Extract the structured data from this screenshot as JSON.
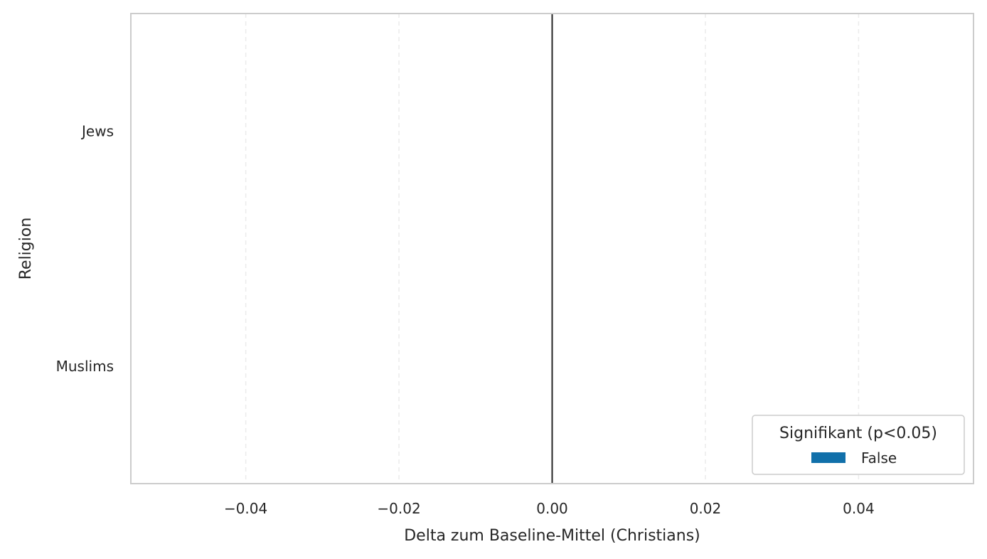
{
  "chart_data": {
    "type": "bar",
    "orientation": "horizontal",
    "xlabel": "Delta zum Baseline-Mittel (Christians)",
    "ylabel": "Religion",
    "categories": [
      "Jews",
      "Muslims"
    ],
    "values": [
      0.0,
      0.0
    ],
    "xlim": [
      -0.055,
      0.055
    ],
    "xticks": [
      -0.04,
      -0.02,
      0.0,
      0.02,
      0.04
    ],
    "xtick_labels": [
      "−0.04",
      "−0.02",
      "0.00",
      "0.02",
      "0.04"
    ],
    "reference_line": 0.0,
    "grid": "x, dashed",
    "legend": {
      "title": "Signifikant (p<0.05)",
      "entries": [
        {
          "label": "False",
          "color": "#1170aa"
        }
      ],
      "placement": "lower-right"
    },
    "colors": {
      "bar": "#1170aa",
      "spine": "#cccccc",
      "grid": "#ebebeb",
      "reference_line": "#262626",
      "text": "#262626"
    }
  }
}
